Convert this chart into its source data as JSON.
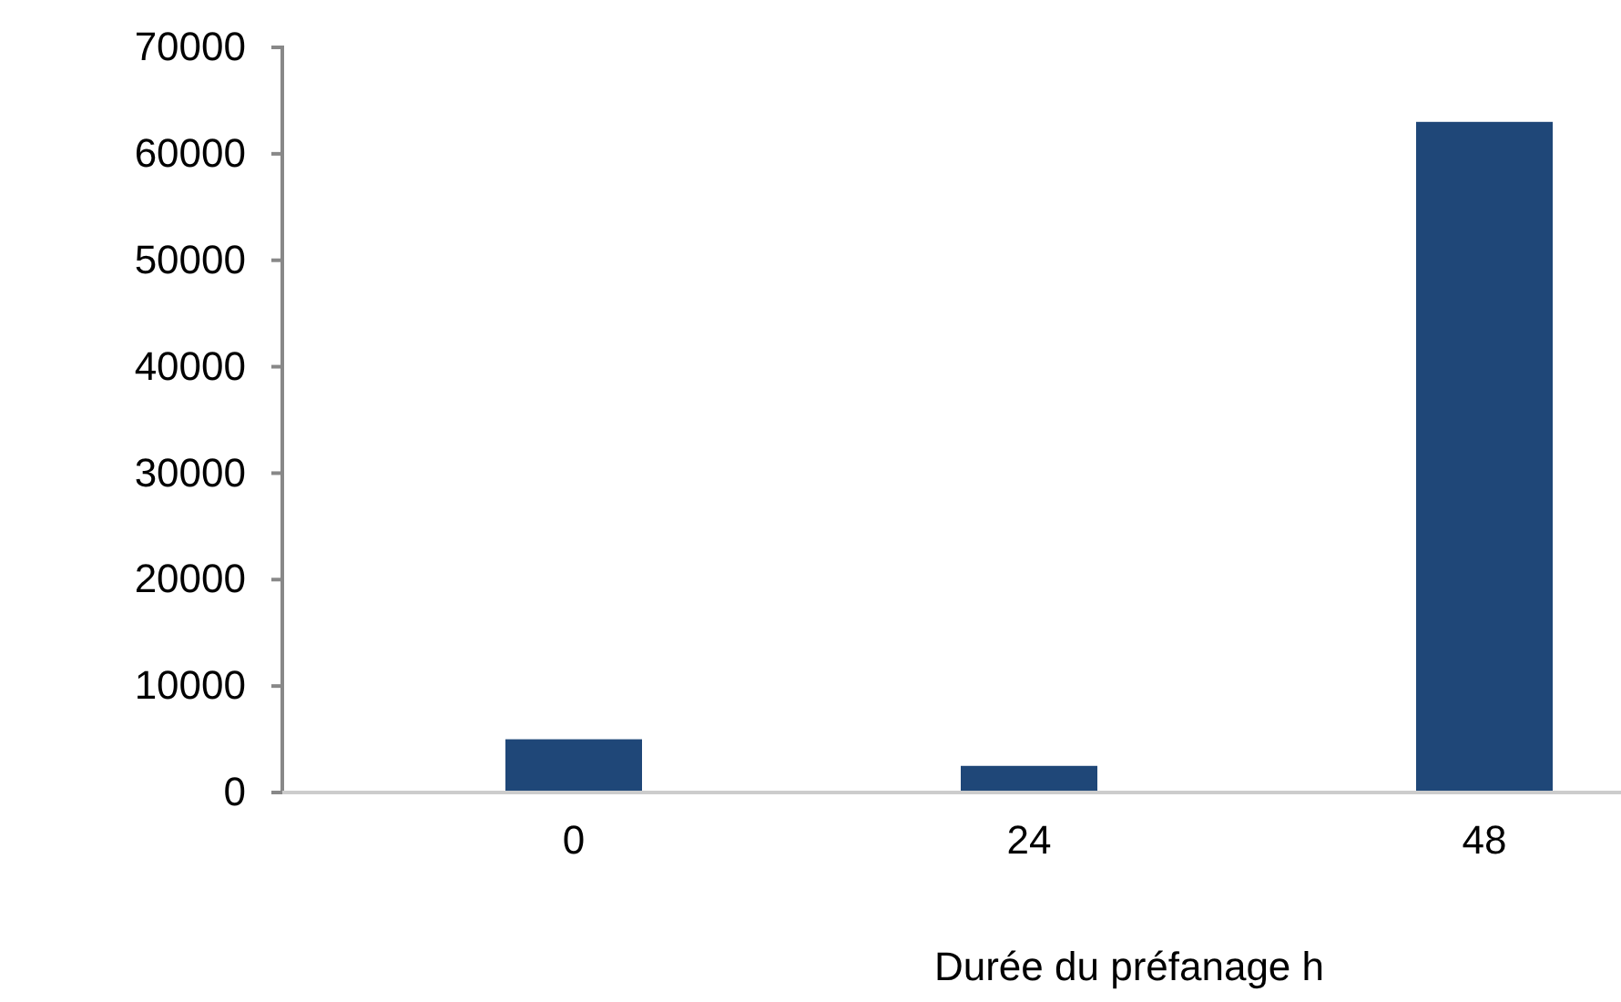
{
  "chart_data": {
    "type": "bar",
    "xlabel": "Durée du préfanage h",
    "categories": [
      "0",
      "24",
      "48"
    ],
    "values": [
      5000,
      2500,
      63000
    ],
    "color": "#1f4778",
    "ylim": [
      0,
      70000
    ],
    "yticks": [
      0,
      10000,
      20000,
      30000,
      40000,
      50000,
      60000,
      70000
    ],
    "grid": false
  }
}
